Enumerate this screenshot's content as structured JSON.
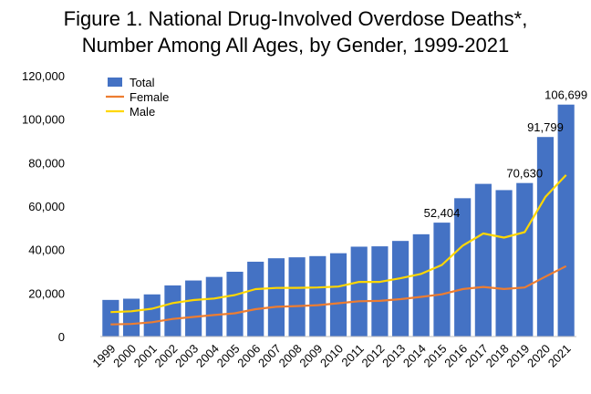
{
  "chart_data": {
    "type": "bar",
    "title_line1": "Figure 1. National Drug-Involved Overdose Deaths*,",
    "title_line2": "Number Among All Ages, by Gender, 1999-2021",
    "categories": [
      "1999",
      "2000",
      "2001",
      "2002",
      "2003",
      "2004",
      "2005",
      "2006",
      "2007",
      "2008",
      "2009",
      "2010",
      "2011",
      "2012",
      "2013",
      "2014",
      "2015",
      "2016",
      "2017",
      "2018",
      "2019",
      "2020",
      "2021"
    ],
    "series": [
      {
        "name": "Total",
        "kind": "bar",
        "color": "#4472C4",
        "values": [
          16849,
          17415,
          19394,
          23518,
          25785,
          27424,
          29813,
          34425,
          36010,
          36450,
          37004,
          38329,
          41340,
          41502,
          43982,
          47055,
          52404,
          63632,
          70237,
          67367,
          70630,
          91799,
          106699
        ]
      },
      {
        "name": "Female",
        "kind": "line",
        "color": "#ED7D31",
        "values": [
          5591,
          5806,
          6593,
          8117,
          9022,
          9918,
          10710,
          12587,
          13659,
          14027,
          14426,
          15323,
          16221,
          16390,
          17183,
          18243,
          19447,
          21839,
          22809,
          21841,
          22582,
          27567,
          32398
        ]
      },
      {
        "name": "Male",
        "kind": "line",
        "color": "#FFD700",
        "values": [
          11258,
          11609,
          12801,
          15401,
          16763,
          17506,
          19103,
          21838,
          22351,
          22423,
          22578,
          23006,
          25119,
          25112,
          26799,
          28812,
          32957,
          41793,
          47428,
          45526,
          48048,
          64232,
          74301
        ]
      }
    ],
    "data_labels": [
      {
        "category": "2015",
        "text": "52,404"
      },
      {
        "category": "2019",
        "text": "70,630"
      },
      {
        "category": "2020",
        "text": "91,799"
      },
      {
        "category": "2021",
        "text": "106,699"
      }
    ],
    "ylim": [
      0,
      120000
    ],
    "yticks": [
      0,
      20000,
      40000,
      60000,
      80000,
      100000,
      120000
    ],
    "ytick_labels": [
      "0",
      "20,000",
      "40,000",
      "60,000",
      "80,000",
      "100,000",
      "120,000"
    ],
    "legend_position": "top-left",
    "grid": false
  }
}
